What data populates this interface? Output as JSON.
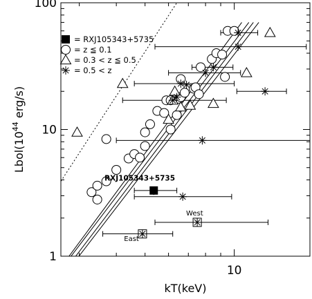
{
  "chart_data": {
    "type": "scatter",
    "xlabel": "kT(keV)",
    "ylabel": "Lbol(10^44 erg/s)",
    "ylabel_parts": {
      "base": "Lbol(10",
      "exp": "44",
      "tail": " erg/s)"
    },
    "x_scale": "log",
    "y_scale": "log",
    "xlim": [
      2.6,
      18
    ],
    "ylim": [
      1,
      100
    ],
    "x_ticks": [
      {
        "value": 10,
        "label": "10"
      }
    ],
    "y_ticks": [
      {
        "value": 1,
        "label": "1"
      },
      {
        "value": 10,
        "label": "10"
      },
      {
        "value": 100,
        "label": "100"
      }
    ],
    "legend": {
      "position": "top-left",
      "entries": [
        {
          "marker": "filled-square",
          "label": "= RXJ105343+5735"
        },
        {
          "marker": "circle",
          "label": "= z ≦ 0.1"
        },
        {
          "marker": "triangle",
          "label": "= 0.3 < z ≦ 0.5"
        },
        {
          "marker": "asterisk",
          "label": "= 0.5 < z"
        }
      ]
    },
    "series": [
      {
        "marker": "circle",
        "points": [
          [
            3.3,
            3.2
          ],
          [
            3.45,
            3.6
          ],
          [
            3.45,
            2.8
          ],
          [
            3.7,
            3.9
          ],
          [
            4.0,
            4.8
          ],
          [
            4.4,
            5.9
          ],
          [
            4.6,
            6.4
          ],
          [
            4.8,
            6.0
          ],
          [
            5.0,
            7.4
          ],
          [
            5.0,
            9.5
          ],
          [
            5.2,
            11.0
          ],
          [
            5.5,
            14.0
          ],
          [
            5.8,
            13.5
          ],
          [
            5.9,
            17.0
          ],
          [
            6.1,
            17.0
          ],
          [
            6.4,
            13.0
          ],
          [
            6.5,
            17.5
          ],
          [
            6.6,
            18.0
          ],
          [
            6.8,
            19.5
          ],
          [
            7.3,
            21.0
          ],
          [
            7.4,
            21.5
          ],
          [
            7.6,
            19.0
          ],
          [
            7.7,
            31.0
          ],
          [
            8.4,
            36.0
          ],
          [
            8.7,
            40.0
          ],
          [
            9.1,
            39.0
          ],
          [
            9.3,
            26.0
          ],
          [
            9.5,
            60.0
          ],
          [
            10.0,
            60.0
          ],
          [
            3.7,
            8.4
          ],
          [
            6.1,
            10.0
          ],
          [
            6.6,
            25.0
          ]
        ]
      },
      {
        "marker": "triangle",
        "points": [
          [
            2.95,
            9.5
          ],
          [
            4.2,
            23.0
          ],
          [
            6.0,
            12.0
          ],
          [
            6.2,
            17.0
          ],
          [
            6.6,
            15.0
          ],
          [
            7.1,
            15.5
          ],
          [
            8.5,
            16.0
          ],
          [
            11.0,
            28.0
          ],
          [
            13.2,
            58.0
          ],
          [
            6.3,
            20.0
          ]
        ]
      },
      {
        "marker": "asterisk",
        "points": [
          {
            "x": 7.8,
            "y": 8.2,
            "xerr": [
              4.0,
              19.0
            ]
          },
          {
            "x": 6.7,
            "y": 2.95,
            "xerr": [
              4.6,
              9.8
            ]
          },
          {
            "x": 12.7,
            "y": 20.0,
            "xerr": [
              10.2,
              15.0
            ]
          },
          {
            "x": 10.3,
            "y": 45.0,
            "xerr": [
              5.4,
              17.5
            ]
          },
          {
            "x": 10.3,
            "y": 58.0,
            "xerr": [
              9.0,
              12.0
            ]
          },
          {
            "x": 6.6,
            "y": 23.0,
            "xerr": [
              4.6,
              10.0
            ]
          },
          {
            "x": 6.2,
            "y": 17.0,
            "xerr": [
              4.2,
              9.4
            ]
          },
          {
            "x": 8.5,
            "y": 31.0,
            "xerr": [
              7.2,
              9.9
            ]
          },
          {
            "x": 8.0,
            "y": 28.0,
            "xerr": [
              6.0,
              10.5
            ]
          },
          {
            "x": 6.4,
            "y": 18.0
          },
          {
            "x": 6.9,
            "y": 22.5
          }
        ]
      },
      {
        "marker": "filled-square",
        "points": [
          {
            "x": 5.35,
            "y": 3.3,
            "xerr": [
              4.6,
              6.4
            ],
            "yerr": [
              3.05,
              3.55
            ]
          }
        ]
      },
      {
        "marker": "boxed-asterisk",
        "points": [
          {
            "x": 4.9,
            "y": 1.5,
            "xerr": [
              3.6,
              6.2
            ],
            "yerr": [
              1.42,
              1.58
            ]
          },
          {
            "x": 7.5,
            "y": 1.85,
            "xerr": [
              5.4,
              13.0
            ],
            "yerr": [
              1.76,
              1.94
            ]
          }
        ]
      }
    ],
    "relations": [
      {
        "style": "dotted",
        "points": [
          [
            2.6,
            3.9
          ],
          [
            6.4,
            100
          ]
        ]
      },
      {
        "style": "solid",
        "points": [
          [
            2.72,
            0.9
          ],
          [
            11.2,
            70
          ]
        ]
      },
      {
        "style": "solid",
        "points": [
          [
            2.82,
            0.9
          ],
          [
            11.6,
            70
          ]
        ]
      },
      {
        "style": "solid",
        "points": [
          [
            2.68,
            0.9
          ],
          [
            10.6,
            70
          ]
        ]
      },
      {
        "style": "solid",
        "points": [
          [
            2.89,
            0.9
          ],
          [
            12.1,
            70
          ]
        ]
      }
    ],
    "annotations": [
      {
        "text": "RXJ105343+5735",
        "x": 4.8,
        "y": 3.95,
        "weight": "bold"
      },
      {
        "text": "West",
        "x": 7.35,
        "y": 2.1,
        "weight": "normal"
      },
      {
        "text": "East",
        "x": 4.5,
        "y": 1.32,
        "weight": "normal"
      }
    ]
  }
}
